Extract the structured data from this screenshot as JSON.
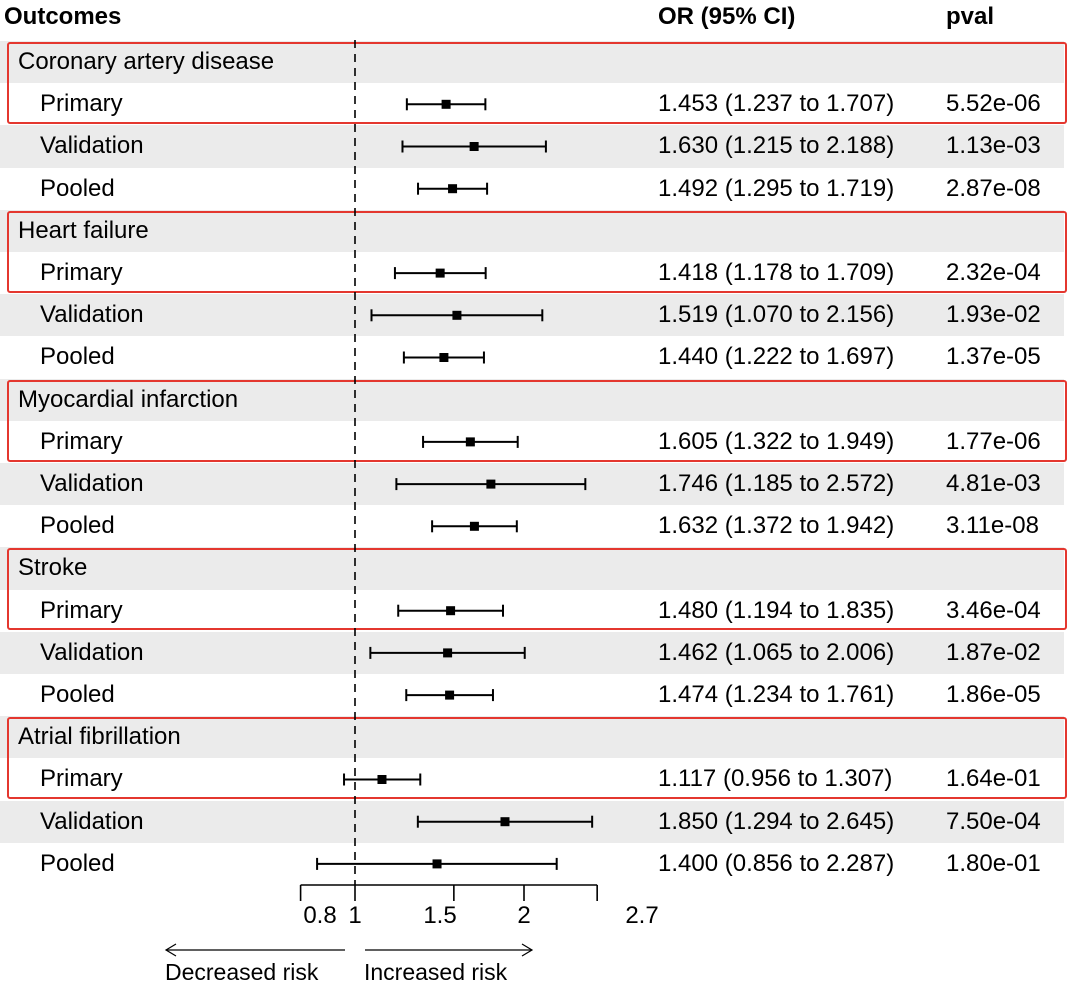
{
  "headers": {
    "outcomes": "Outcomes",
    "or": "OR (95% CI)",
    "pval": "pval"
  },
  "axis": {
    "ticks": [
      "0.8",
      "1",
      "1.5",
      "2",
      "2.7"
    ],
    "decreased_label": "Decreased risk",
    "increased_label": "Increased risk"
  },
  "colors": {
    "band": "#ebebeb",
    "highlight_box": "#e4372f",
    "ink": "#000000"
  },
  "chart_data": {
    "type": "forest",
    "title": "",
    "xlabel": "",
    "xscale": "log",
    "xlim": [
      0.8,
      2.7
    ],
    "reference_line": 1,
    "groups": [
      {
        "name": "Coronary artery disease",
        "rows": [
          {
            "label": "Primary",
            "or": 1.453,
            "lo": 1.237,
            "hi": 1.707,
            "ci_text": "1.453 (1.237 to 1.707)",
            "pval": "5.52e-06"
          },
          {
            "label": "Validation",
            "or": 1.63,
            "lo": 1.215,
            "hi": 2.188,
            "ci_text": "1.630 (1.215 to 2.188)",
            "pval": "1.13e-03"
          },
          {
            "label": "Pooled",
            "or": 1.492,
            "lo": 1.295,
            "hi": 1.719,
            "ci_text": "1.492 (1.295 to 1.719)",
            "pval": "2.87e-08"
          }
        ]
      },
      {
        "name": "Heart failure",
        "rows": [
          {
            "label": "Primary",
            "or": 1.418,
            "lo": 1.178,
            "hi": 1.709,
            "ci_text": "1.418 (1.178 to 1.709)",
            "pval": "2.32e-04"
          },
          {
            "label": "Validation",
            "or": 1.519,
            "lo": 1.07,
            "hi": 2.156,
            "ci_text": "1.519 (1.070 to 2.156)",
            "pval": "1.93e-02"
          },
          {
            "label": "Pooled",
            "or": 1.44,
            "lo": 1.222,
            "hi": 1.697,
            "ci_text": "1.440 (1.222 to 1.697)",
            "pval": "1.37e-05"
          }
        ]
      },
      {
        "name": "Myocardial infarction",
        "rows": [
          {
            "label": "Primary",
            "or": 1.605,
            "lo": 1.322,
            "hi": 1.949,
            "ci_text": "1.605 (1.322 to 1.949)",
            "pval": "1.77e-06"
          },
          {
            "label": "Validation",
            "or": 1.746,
            "lo": 1.185,
            "hi": 2.572,
            "ci_text": "1.746 (1.185 to 2.572)",
            "pval": "4.81e-03"
          },
          {
            "label": "Pooled",
            "or": 1.632,
            "lo": 1.372,
            "hi": 1.942,
            "ci_text": "1.632 (1.372 to 1.942)",
            "pval": "3.11e-08"
          }
        ]
      },
      {
        "name": "Stroke",
        "rows": [
          {
            "label": "Primary",
            "or": 1.48,
            "lo": 1.194,
            "hi": 1.835,
            "ci_text": "1.480 (1.194 to 1.835)",
            "pval": "3.46e-04"
          },
          {
            "label": "Validation",
            "or": 1.462,
            "lo": 1.065,
            "hi": 2.006,
            "ci_text": "1.462 (1.065 to 2.006)",
            "pval": "1.87e-02"
          },
          {
            "label": "Pooled",
            "or": 1.474,
            "lo": 1.234,
            "hi": 1.761,
            "ci_text": "1.474 (1.234 to 1.761)",
            "pval": "1.86e-05"
          }
        ]
      },
      {
        "name": "Atrial fibrillation",
        "rows": [
          {
            "label": "Primary",
            "or": 1.117,
            "lo": 0.956,
            "hi": 1.307,
            "ci_text": "1.117 (0.956 to 1.307)",
            "pval": "1.64e-01"
          },
          {
            "label": "Validation",
            "or": 1.85,
            "lo": 1.294,
            "hi": 2.645,
            "ci_text": "1.850 (1.294 to 2.645)",
            "pval": "7.50e-04"
          },
          {
            "label": "Pooled",
            "or": 1.4,
            "lo": 0.856,
            "hi": 2.287,
            "ci_text": "1.400 (0.856 to 2.287)",
            "pval": "1.80e-01"
          }
        ]
      }
    ]
  }
}
